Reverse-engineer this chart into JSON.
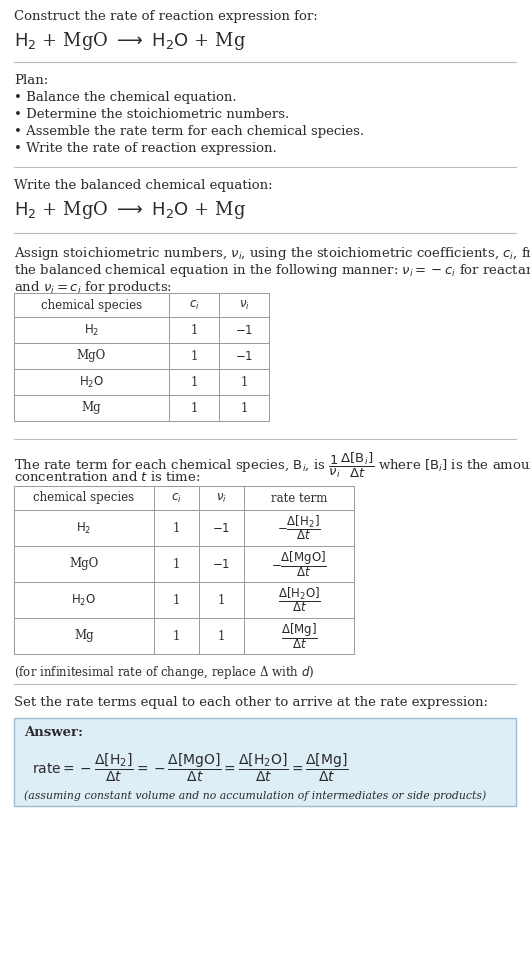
{
  "bg_color": "#ffffff",
  "text_color": "#2b2b2b",
  "light_blue_bg": "#deeef6",
  "border_color": "#bbbbbb",
  "title_line1": "Construct the rate of reaction expression for:",
  "plan_header": "Plan:",
  "plan_items": [
    "• Balance the chemical equation.",
    "• Determine the stoichiometric numbers.",
    "• Assemble the rate term for each chemical species.",
    "• Write the rate of reaction expression."
  ],
  "balanced_header": "Write the balanced chemical equation:",
  "assign_text1": "Assign stoichiometric numbers, $\\nu_i$, using the stoichiometric coefficients, $c_i$, from",
  "assign_text2": "the balanced chemical equation in the following manner: $\\nu_i = -c_i$ for reactants",
  "assign_text3": "and $\\nu_i = c_i$ for products:",
  "table1_headers": [
    "chemical species",
    "$c_i$",
    "$\\nu_i$"
  ],
  "table1_rows": [
    [
      "$\\mathrm{H_2}$",
      "1",
      "$-1$"
    ],
    [
      "MgO",
      "1",
      "$-1$"
    ],
    [
      "$\\mathrm{H_2O}$",
      "1",
      "1"
    ],
    [
      "Mg",
      "1",
      "1"
    ]
  ],
  "rate_text1": "The rate term for each chemical species, $\\mathrm{B}_i$, is $\\dfrac{1}{\\nu_i}\\dfrac{\\Delta[\\mathrm{B}_i]}{\\Delta t}$ where $[\\mathrm{B}_i]$ is the amount",
  "rate_text2": "concentration and $t$ is time:",
  "table2_headers": [
    "chemical species",
    "$c_i$",
    "$\\nu_i$",
    "rate term"
  ],
  "table2_rows": [
    [
      "$\\mathrm{H_2}$",
      "1",
      "$-1$",
      "$-\\dfrac{\\Delta[\\mathrm{H_2}]}{\\Delta t}$"
    ],
    [
      "MgO",
      "1",
      "$-1$",
      "$-\\dfrac{\\Delta[\\mathrm{MgO}]}{\\Delta t}$"
    ],
    [
      "$\\mathrm{H_2O}$",
      "1",
      "1",
      "$\\dfrac{\\Delta[\\mathrm{H_2O}]}{\\Delta t}$"
    ],
    [
      "Mg",
      "1",
      "1",
      "$\\dfrac{\\Delta[\\mathrm{Mg}]}{\\Delta t}$"
    ]
  ],
  "infinitesimal_note": "(for infinitesimal rate of change, replace Δ with $d$)",
  "set_rate_text": "Set the rate terms equal to each other to arrive at the rate expression:",
  "answer_label": "Answer:",
  "answer_note": "(assuming constant volume and no accumulation of intermediates or side products)"
}
